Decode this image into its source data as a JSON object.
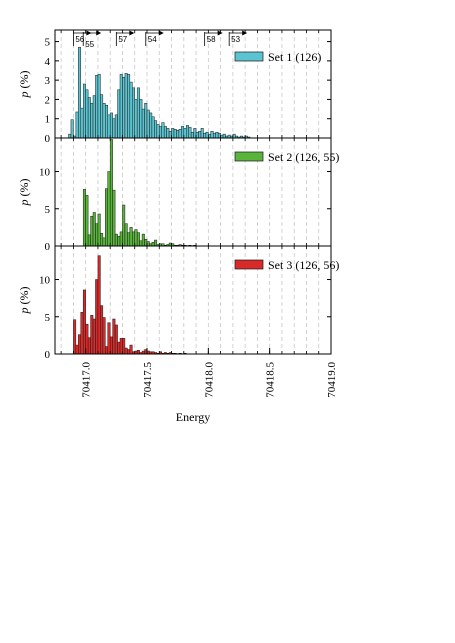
{
  "chart_data": [
    {
      "type": "bar",
      "panel": "top",
      "ylabel": "p (%)",
      "ylim": [
        0,
        5.6
      ],
      "yticks": [
        0,
        1,
        2,
        3,
        4,
        5
      ],
      "xlim": [
        70416.75,
        70419.0
      ],
      "legend": {
        "label": "Set 1 (126)",
        "color": "#5bc4d0",
        "position": "top-right"
      },
      "grid_x": "dashed vertical lines at 0.1 spacing",
      "markers": [
        {
          "label": "56",
          "x": 70416.9
        },
        {
          "label": "55",
          "x": 70416.98
        },
        {
          "label": "57",
          "x": 70417.25
        },
        {
          "label": "54",
          "x": 70417.49
        },
        {
          "label": "58",
          "x": 70417.97
        },
        {
          "label": "53",
          "x": 70418.17
        }
      ],
      "bin_width": 0.02,
      "x_start": 70416.86,
      "values": [
        0.2,
        0.95,
        0.1,
        1.35,
        4.7,
        1.55,
        2.8,
        2.5,
        2.1,
        1.8,
        2.2,
        3.25,
        3.3,
        2.25,
        1.8,
        1.7,
        1.2,
        1.3,
        1.0,
        1.2,
        2.5,
        3.3,
        3.15,
        3.35,
        3.3,
        2.9,
        2.6,
        2.0,
        2.6,
        2.0,
        1.5,
        1.8,
        1.45,
        1.3,
        1.1,
        0.9,
        0.7,
        0.6,
        0.8,
        0.6,
        0.5,
        0.35,
        0.5,
        0.45,
        0.4,
        0.45,
        0.6,
        0.5,
        0.65,
        0.55,
        0.3,
        0.5,
        0.3,
        0.35,
        0.5,
        0.25,
        0.3,
        0.2,
        0.35,
        0.25,
        0.3,
        0.25,
        0.15,
        0.2,
        0.1,
        0.15,
        0.1,
        0.2,
        0.1,
        0.05,
        0.1,
        0.05,
        0.1,
        0.05
      ]
    },
    {
      "type": "bar",
      "panel": "middle",
      "ylabel": "p (%)",
      "ylim": [
        0,
        14.5
      ],
      "yticks": [
        0,
        5,
        10
      ],
      "xlim": [
        70416.75,
        70419.0
      ],
      "legend": {
        "label": "Set 2 (126, 55)",
        "color": "#58b43a",
        "position": "top-right"
      },
      "bin_width": 0.02,
      "x_start": 70416.98,
      "values": [
        7.6,
        6.8,
        1.5,
        4.0,
        4.5,
        3.0,
        4.3,
        1.7,
        1.1,
        7.7,
        10.0,
        14.3,
        7.5,
        1.6,
        1.3,
        1.9,
        5.5,
        3.0,
        1.8,
        2.5,
        1.9,
        2.2,
        1.8,
        0.7,
        1.6,
        0.9,
        0.6,
        0.3,
        0.5,
        0.8,
        0.2,
        0.3,
        0.3,
        0.1,
        0.2,
        0.4,
        0.3,
        0.1,
        0.1,
        0.2,
        0.1,
        0.1,
        0.05,
        0.1,
        0.05,
        0.1
      ]
    },
    {
      "type": "bar",
      "panel": "bottom",
      "ylabel": "p (%)",
      "ylim": [
        0,
        14.5
      ],
      "yticks": [
        0,
        5,
        10
      ],
      "xlim": [
        70416.75,
        70419.0
      ],
      "xticks": [
        70417.0,
        70417.5,
        70418.0,
        70418.5,
        70419.0
      ],
      "xlabel": "Energy",
      "legend": {
        "label": "Set 3 (126, 56)",
        "color": "#d92a2a",
        "position": "top-right"
      },
      "bin_width": 0.02,
      "x_start": 70416.9,
      "values": [
        4.6,
        1.2,
        2.6,
        5.6,
        8.6,
        4.0,
        2.2,
        5.2,
        4.7,
        10.0,
        13.2,
        6.5,
        4.9,
        1.0,
        4.2,
        2.3,
        4.7,
        3.9,
        1.6,
        2.1,
        2.1,
        0.8,
        0.6,
        1.2,
        0.3,
        0.4,
        0.5,
        0.2,
        0.4,
        0.6,
        0.4,
        0.3,
        0.3,
        0.2,
        0.1,
        0.3,
        0.1,
        0.2,
        0.1,
        0.2,
        0.1,
        0.1,
        0.05,
        0.1,
        0.05,
        0.1
      ]
    }
  ]
}
